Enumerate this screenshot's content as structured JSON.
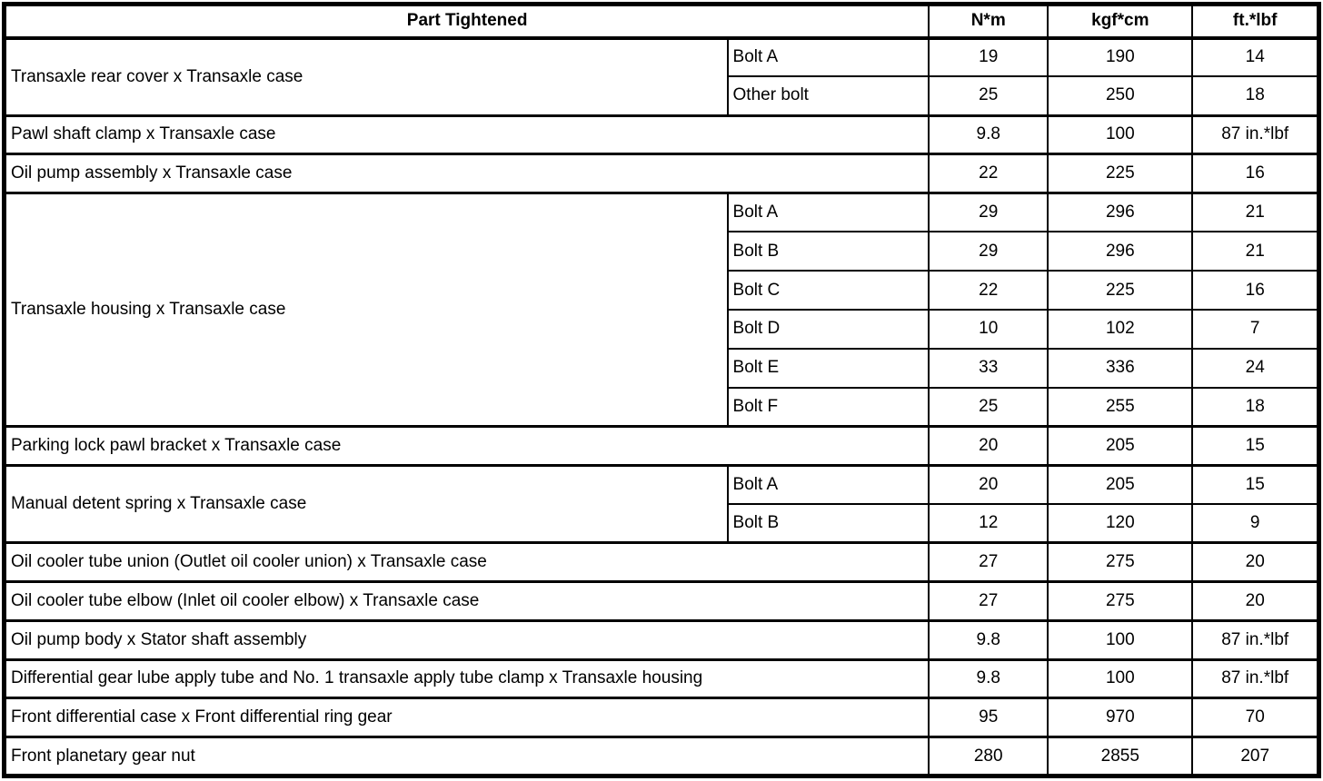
{
  "table": {
    "headers": {
      "part": "Part Tightened",
      "nm": "N*m",
      "kgfcm": "kgf*cm",
      "ftlbf": "ft.*lbf"
    },
    "rows": [
      {
        "part": "Transaxle rear cover x Transaxle case",
        "subrows": [
          {
            "bolt": "Bolt A",
            "nm": "19",
            "kgfcm": "190",
            "ftlbf": "14"
          },
          {
            "bolt": "Other bolt",
            "nm": "25",
            "kgfcm": "250",
            "ftlbf": "18"
          }
        ]
      },
      {
        "part": "Pawl shaft clamp x Transaxle case",
        "nm": "9.8",
        "kgfcm": "100",
        "ftlbf": "87 in.*lbf"
      },
      {
        "part": "Oil pump assembly x Transaxle case",
        "nm": "22",
        "kgfcm": "225",
        "ftlbf": "16"
      },
      {
        "part": "Transaxle housing x Transaxle case",
        "subrows": [
          {
            "bolt": "Bolt A",
            "nm": "29",
            "kgfcm": "296",
            "ftlbf": "21"
          },
          {
            "bolt": "Bolt B",
            "nm": "29",
            "kgfcm": "296",
            "ftlbf": "21"
          },
          {
            "bolt": "Bolt C",
            "nm": "22",
            "kgfcm": "225",
            "ftlbf": "16"
          },
          {
            "bolt": "Bolt D",
            "nm": "10",
            "kgfcm": "102",
            "ftlbf": "7"
          },
          {
            "bolt": "Bolt E",
            "nm": "33",
            "kgfcm": "336",
            "ftlbf": "24"
          },
          {
            "bolt": "Bolt F",
            "nm": "25",
            "kgfcm": "255",
            "ftlbf": "18"
          }
        ]
      },
      {
        "part": "Parking lock pawl bracket x Transaxle case",
        "nm": "20",
        "kgfcm": "205",
        "ftlbf": "15"
      },
      {
        "part": "Manual detent spring x Transaxle case",
        "subrows": [
          {
            "bolt": "Bolt A",
            "nm": "20",
            "kgfcm": "205",
            "ftlbf": "15"
          },
          {
            "bolt": "Bolt B",
            "nm": "12",
            "kgfcm": "120",
            "ftlbf": "9"
          }
        ]
      },
      {
        "part": "Oil cooler tube union (Outlet oil cooler union) x Transaxle case",
        "nm": "27",
        "kgfcm": "275",
        "ftlbf": "20"
      },
      {
        "part": "Oil cooler tube elbow (Inlet oil cooler elbow) x Transaxle case",
        "nm": "27",
        "kgfcm": "275",
        "ftlbf": "20"
      },
      {
        "part": "Oil pump body x Stator shaft assembly",
        "nm": "9.8",
        "kgfcm": "100",
        "ftlbf": "87 in.*lbf"
      },
      {
        "part": "Differential gear lube apply tube and No. 1 transaxle apply tube clamp x Transaxle housing",
        "nm": "9.8",
        "kgfcm": "100",
        "ftlbf": "87 in.*lbf"
      },
      {
        "part": "Front differential case x Front differential ring gear",
        "nm": "95",
        "kgfcm": "970",
        "ftlbf": "70"
      },
      {
        "part": "Front planetary gear nut",
        "nm": "280",
        "kgfcm": "2855",
        "ftlbf": "207"
      }
    ]
  }
}
